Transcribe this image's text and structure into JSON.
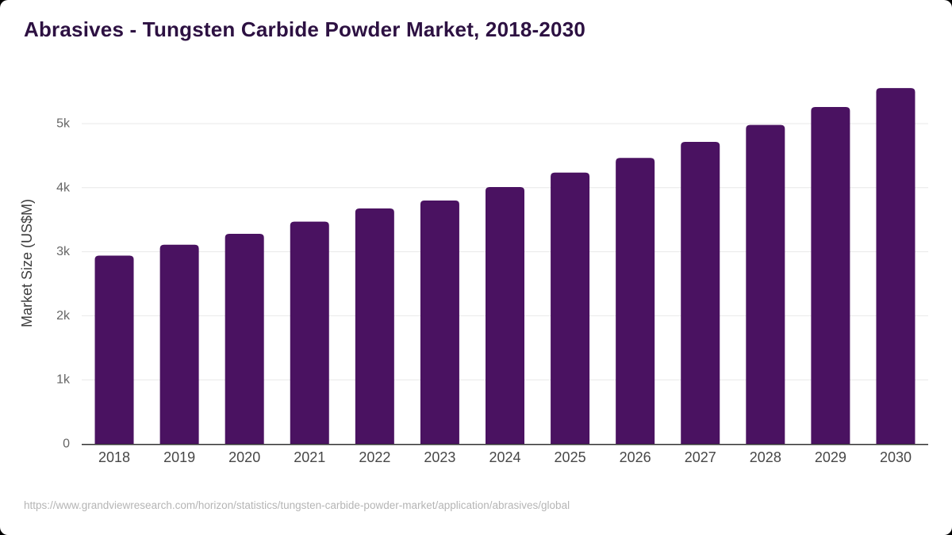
{
  "header": {
    "title": "Abrasives - Tungsten Carbide Powder Market, 2018-2030"
  },
  "chart_data": {
    "type": "bar",
    "title": "Abrasives - Tungsten Carbide Powder Market, 2018-2030",
    "categories": [
      "2018",
      "2019",
      "2020",
      "2021",
      "2022",
      "2023",
      "2024",
      "2025",
      "2026",
      "2027",
      "2028",
      "2029",
      "2030"
    ],
    "values": [
      2940,
      3110,
      3280,
      3470,
      3675,
      3800,
      4010,
      4235,
      4465,
      4715,
      4980,
      5260,
      5555
    ],
    "xlabel": "",
    "ylabel": "Market Size (US$M)",
    "ylim": [
      0,
      5700
    ],
    "yticks": {
      "values": [
        0,
        1000,
        2000,
        3000,
        4000,
        5000
      ],
      "labels": [
        "0",
        "1k",
        "2k",
        "3k",
        "4k",
        "5k"
      ]
    },
    "grid": true,
    "legend": false
  },
  "footer": {
    "source_url": "https://www.grandviewresearch.com/horizon/statistics/tungsten-carbide-powder-market/application/abrasives/global"
  },
  "colors": {
    "page_background": "#000000",
    "background": "#ffffff",
    "bar": "#4a1261",
    "title": "#2d1142",
    "axis_text": "#666666",
    "xaxis_text": "#474747",
    "ylabel_text": "#3d3d3d",
    "gridline": "#e8e8e8",
    "axis_line": "#333333",
    "source_text": "#b5b5b5"
  }
}
